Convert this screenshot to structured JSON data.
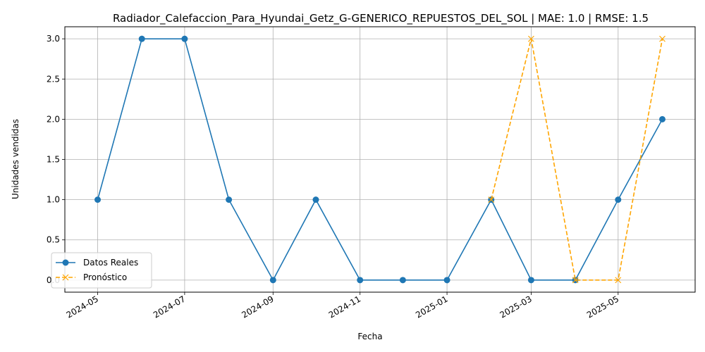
{
  "chart_data": {
    "type": "line",
    "title": "Radiador_Calefaccion_Para_Hyundai_Getz_G-GENERICO_REPUESTOS_DEL_SOL | MAE: 1.0 | RMSE: 1.5",
    "xlabel": "Fecha",
    "ylabel": "Unidades vendidas",
    "xlim": [
      "2024-04-08",
      "2025-06-24"
    ],
    "ylim": [
      -0.15,
      3.15
    ],
    "x_ticks": [
      "2024-05",
      "2024-07",
      "2024-09",
      "2024-11",
      "2025-01",
      "2025-03",
      "2025-05"
    ],
    "x_tick_dates": [
      "2024-05-01",
      "2024-07-01",
      "2024-09-01",
      "2024-11-01",
      "2025-01-01",
      "2025-03-01",
      "2025-05-01"
    ],
    "y_ticks": [
      "0.0",
      "0.5",
      "1.0",
      "1.5",
      "2.0",
      "2.5",
      "3.0"
    ],
    "y_tick_values": [
      0,
      0.5,
      1,
      1.5,
      2,
      2.5,
      3
    ],
    "grid": true,
    "legend_position": "lower-left",
    "series": [
      {
        "name": "Datos Reales",
        "color": "#1f77b4",
        "style": "solid",
        "marker": "circle",
        "x": [
          "2024-05-01",
          "2024-06-01",
          "2024-07-01",
          "2024-08-01",
          "2024-09-01",
          "2024-10-01",
          "2024-11-01",
          "2024-12-01",
          "2025-01-01",
          "2025-02-01",
          "2025-03-01",
          "2025-04-01",
          "2025-05-01",
          "2025-06-01"
        ],
        "y": [
          1,
          3,
          3,
          1,
          0,
          1,
          0,
          0,
          0,
          1,
          0,
          0,
          1,
          2
        ]
      },
      {
        "name": "Pronóstico",
        "color": "#ffa500",
        "style": "dashed",
        "marker": "x",
        "x": [
          "2025-02-01",
          "2025-03-01",
          "2025-04-01",
          "2025-05-01",
          "2025-06-01"
        ],
        "y": [
          1,
          3,
          0,
          0,
          3
        ]
      }
    ]
  }
}
